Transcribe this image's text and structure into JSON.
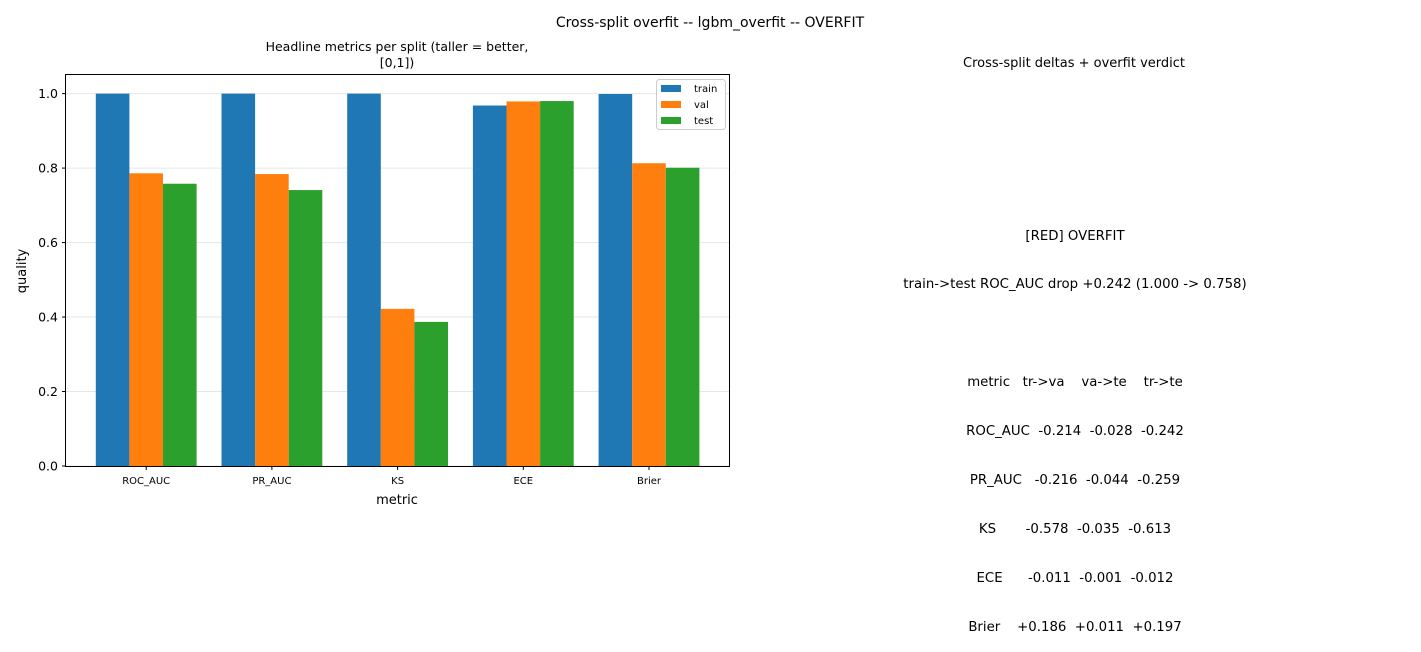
{
  "figure": {
    "suptitle": "Cross-split overfit -- lgbm_overfit -- OVERFIT"
  },
  "chart_data": {
    "type": "bar",
    "title_line1": "Headline metrics per split (taller = better,",
    "title_line2": "[0,1])",
    "xlabel": "metric",
    "ylabel": "quality",
    "categories": [
      "ROC_AUC",
      "PR_AUC",
      "KS",
      "ECE",
      "Brier"
    ],
    "ylim": [
      0,
      1.05
    ],
    "yticks": [
      "0.0",
      "0.2",
      "0.4",
      "0.6",
      "0.8",
      "1.0"
    ],
    "grid": "y",
    "legend_position": "upper right",
    "series": [
      {
        "name": "train",
        "color": "#1f77b4",
        "values": [
          1.0,
          1.0,
          1.0,
          0.968,
          0.999
        ]
      },
      {
        "name": "val",
        "color": "#ff7f0e",
        "values": [
          0.786,
          0.784,
          0.422,
          0.979,
          0.813
        ]
      },
      {
        "name": "test",
        "color": "#2ca02c",
        "values": [
          0.758,
          0.741,
          0.387,
          0.98,
          0.801
        ]
      }
    ]
  },
  "panel2": {
    "title": "Cross-split deltas + overfit verdict",
    "verdict": "[RED] OVERFIT",
    "drop_line": "train->test ROC_AUC drop +0.242 (1.000 -> 0.758)",
    "table_lines": [
      "metric   tr->va    va->te    tr->te",
      "ROC_AUC  -0.214  -0.028  -0.242",
      "PR_AUC   -0.216  -0.044  -0.259",
      "KS       -0.578  -0.035  -0.613",
      "ECE      -0.011  -0.001  -0.012",
      "Brier    +0.186  +0.011  +0.197"
    ]
  }
}
